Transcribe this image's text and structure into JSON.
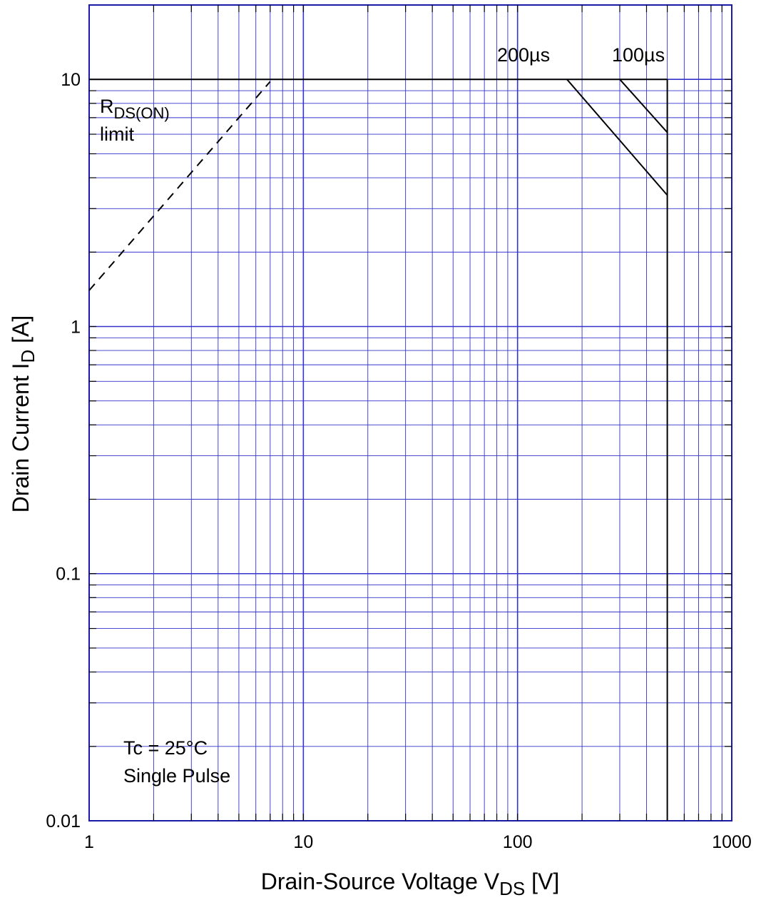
{
  "chart_data": {
    "type": "line",
    "xscale": "log",
    "yscale": "log",
    "xlim": [
      1,
      1000
    ],
    "ylim": [
      0.01,
      20
    ],
    "grid": true,
    "grid_color": "#3333cc",
    "line_color": "#000000",
    "xlabel_main": "Drain-Source Voltage  V",
    "xlabel_sub": "DS",
    "xlabel_unit": "  [V]",
    "ylabel_main": "Drain Current  I",
    "ylabel_sub": "D",
    "ylabel_unit": "  [A]",
    "x_ticks": [
      {
        "value": 1,
        "label": "1"
      },
      {
        "value": 10,
        "label": "10"
      },
      {
        "value": 100,
        "label": "100"
      },
      {
        "value": 1000,
        "label": "1000"
      }
    ],
    "y_ticks": [
      {
        "value": 0.01,
        "label": "0.01"
      },
      {
        "value": 0.1,
        "label": "0.1"
      },
      {
        "value": 1,
        "label": "1"
      },
      {
        "value": 10,
        "label": "10"
      }
    ],
    "series": [
      {
        "id": "rds-on-limit",
        "style": "dashed",
        "x": [
          1,
          7
        ],
        "y": [
          1.4,
          9.8
        ]
      },
      {
        "id": "current-limit",
        "style": "solid",
        "x": [
          1,
          500
        ],
        "y": [
          10,
          10
        ]
      },
      {
        "id": "pulse-200us",
        "style": "solid",
        "x": [
          170,
          500
        ],
        "y": [
          10,
          3.4
        ]
      },
      {
        "id": "pulse-100us",
        "style": "solid",
        "x": [
          300,
          500
        ],
        "y": [
          10,
          6.1
        ]
      },
      {
        "id": "voltage-limit",
        "style": "solid",
        "x": [
          500,
          500
        ],
        "y": [
          10,
          0.01
        ]
      }
    ],
    "annotations": {
      "label_200us": "200µs",
      "label_100us": "100µs",
      "rds_main": "R",
      "rds_sub": "DS(ON)",
      "rds_limit": "limit",
      "condition_temp": "Tc = 25°C",
      "condition_pulse": "Single  Pulse"
    }
  }
}
